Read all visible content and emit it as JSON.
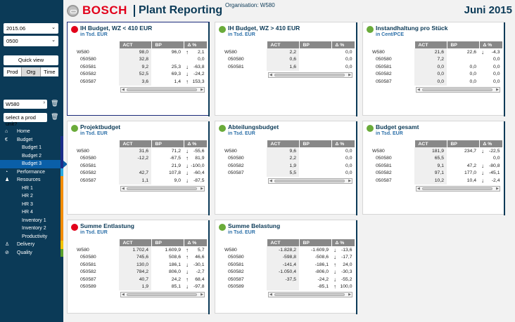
{
  "header": {
    "brand": "BOSCH",
    "title": "Plant Reporting",
    "organisation": "Organisation: W580",
    "period": "Juni 2015"
  },
  "sidebar": {
    "period_select": "2015.06",
    "plant_select": "0500",
    "quick_view": "Quick view",
    "tabs": [
      {
        "label": "Prod",
        "active": false
      },
      {
        "label": "Org",
        "active": true
      },
      {
        "label": "Time",
        "active": false
      }
    ],
    "unit_input": "W580",
    "prod_unit_placeholder": "select a prod unit?",
    "nav": [
      {
        "label": "Home",
        "icon": "home-icon",
        "glyph": "⌂",
        "sub": false,
        "strip": ""
      },
      {
        "label": "Budget",
        "icon": "euro-icon",
        "glyph": "€",
        "sub": false,
        "strip": "#1b2d8a"
      },
      {
        "label": "Budget 1",
        "sub": true,
        "strip": "#1b2d8a"
      },
      {
        "label": "Budget 2",
        "sub": true,
        "strip": "#1b2d8a"
      },
      {
        "label": "Budget 3",
        "sub": true,
        "strip": "#1b2d8a",
        "active": true
      },
      {
        "label": "Performance",
        "icon": "gauge-icon",
        "glyph": "◔",
        "sub": false,
        "strip": "#29a8e0"
      },
      {
        "label": "Resources",
        "icon": "people-icon",
        "glyph": "♟",
        "sub": false,
        "strip": "#f28c00"
      },
      {
        "label": "HR 1",
        "sub": true,
        "strip": "#f28c00"
      },
      {
        "label": "HR 2",
        "sub": true,
        "strip": "#f28c00"
      },
      {
        "label": "HR 3",
        "sub": true,
        "strip": "#f28c00"
      },
      {
        "label": "HR 4",
        "sub": true,
        "strip": "#f28c00"
      },
      {
        "label": "Inventory 1",
        "sub": true,
        "strip": "#f28c00"
      },
      {
        "label": "Inventory 2",
        "sub": true,
        "strip": "#f28c00"
      },
      {
        "label": "Productivity",
        "sub": true,
        "strip": "#f28c00"
      },
      {
        "label": "Delivery",
        "icon": "person-icon",
        "glyph": "♙",
        "sub": false,
        "strip": "#f2c200"
      },
      {
        "label": "Quality",
        "icon": "check-icon",
        "glyph": "⊘",
        "sub": false,
        "strip": "#5aa02c"
      }
    ]
  },
  "columns": [
    "ACT",
    "BP",
    "Δ %"
  ],
  "cards": [
    {
      "title": "IH Budget, WZ < 410 EUR",
      "unit": "in Tsd. EUR",
      "status": "red",
      "selected": true,
      "rows": [
        {
          "name": "W580",
          "act": "98,0",
          "bp": "96,0",
          "arrow": "up",
          "delta": "2,1"
        },
        {
          "name": "050580",
          "act": "32,8",
          "bp": "",
          "arrow": "",
          "delta": "0,0"
        },
        {
          "name": "050581",
          "act": "9,2",
          "bp": "25,3",
          "arrow": "down",
          "delta": "-63,8"
        },
        {
          "name": "050582",
          "act": "52,5",
          "bp": "69,3",
          "arrow": "down",
          "delta": "-24,2"
        },
        {
          "name": "050587",
          "act": "3,6",
          "bp": "1,4",
          "arrow": "up",
          "delta": "153,3"
        }
      ]
    },
    {
      "title": "IH Budget, WZ > 410 EUR",
      "unit": "in Tsd. EUR",
      "status": "green",
      "selected": false,
      "rows": [
        {
          "name": "W580",
          "act": "2,2",
          "bp": "",
          "arrow": "",
          "delta": "0,0"
        },
        {
          "name": "050580",
          "act": "0,6",
          "bp": "",
          "arrow": "",
          "delta": "0,0"
        },
        {
          "name": "050581",
          "act": "1,6",
          "bp": "",
          "arrow": "",
          "delta": "0,0"
        }
      ]
    },
    {
      "title": "Instandhaltung pro Stück",
      "unit": "in Cent/PCE",
      "status": "green",
      "selected": false,
      "rows": [
        {
          "name": "W580",
          "act": "21,6",
          "bp": "22,6",
          "arrow": "down",
          "delta": "-4,3"
        },
        {
          "name": "050580",
          "act": "7,2",
          "bp": "",
          "arrow": "",
          "delta": "0,0"
        },
        {
          "name": "050581",
          "act": "0,0",
          "bp": "0,0",
          "arrow": "",
          "delta": "0,0"
        },
        {
          "name": "050582",
          "act": "0,0",
          "bp": "0,0",
          "arrow": "",
          "delta": "0,0"
        },
        {
          "name": "050587",
          "act": "0,0",
          "bp": "0,0",
          "arrow": "",
          "delta": "0,0"
        }
      ]
    },
    {
      "title": "Projektbudget",
      "unit": "in Tsd. EUR",
      "status": "green",
      "selected": false,
      "rows": [
        {
          "name": "W580",
          "act": "31,6",
          "bp": "71,2",
          "arrow": "down",
          "delta": "-55,6"
        },
        {
          "name": "050580",
          "act": "-12,2",
          "bp": "-67,5",
          "arrow": "up",
          "delta": "81,9"
        },
        {
          "name": "050581",
          "act": "",
          "bp": "21,9",
          "arrow": "down",
          "delta": "-100,0"
        },
        {
          "name": "050582",
          "act": "42,7",
          "bp": "107,8",
          "arrow": "down",
          "delta": "-60,4"
        },
        {
          "name": "050587",
          "act": "1,1",
          "bp": "9,0",
          "arrow": "down",
          "delta": "-87,5"
        }
      ]
    },
    {
      "title": "Abteilungsbudget",
      "unit": "in Tsd. EUR",
      "status": "green",
      "selected": false,
      "rows": [
        {
          "name": "W580",
          "act": "9,6",
          "bp": "",
          "arrow": "",
          "delta": "0,0"
        },
        {
          "name": "050580",
          "act": "2,2",
          "bp": "",
          "arrow": "",
          "delta": "0,0"
        },
        {
          "name": "050582",
          "act": "1,9",
          "bp": "",
          "arrow": "",
          "delta": "0,0"
        },
        {
          "name": "050587",
          "act": "5,5",
          "bp": "",
          "arrow": "",
          "delta": "0,0"
        }
      ]
    },
    {
      "title": "Budget gesamt",
      "unit": "in Tsd. EUR",
      "status": "green",
      "selected": false,
      "rows": [
        {
          "name": "W580",
          "act": "181,9",
          "bp": "234,7",
          "arrow": "down",
          "delta": "-22,5"
        },
        {
          "name": "050580",
          "act": "65,5",
          "bp": "",
          "arrow": "",
          "delta": "0,0"
        },
        {
          "name": "050581",
          "act": "9,1",
          "bp": "47,2",
          "arrow": "down",
          "delta": "-80,8"
        },
        {
          "name": "050582",
          "act": "97,1",
          "bp": "177,0",
          "arrow": "down",
          "delta": "-45,1"
        },
        {
          "name": "050587",
          "act": "10,2",
          "bp": "10,4",
          "arrow": "down",
          "delta": "-2,4"
        }
      ]
    },
    {
      "title": "Summe Entlastung",
      "unit": "in Tsd. EUR",
      "status": "red",
      "selected": false,
      "rows": [
        {
          "name": "W580",
          "act": "1.702,4",
          "bp": "1.609,9",
          "arrow": "up",
          "delta": "5,7"
        },
        {
          "name": "050580",
          "act": "745,6",
          "bp": "508,6",
          "arrow": "up",
          "delta": "46,6"
        },
        {
          "name": "050581",
          "act": "130,0",
          "bp": "186,1",
          "arrow": "down",
          "delta": "-30,1"
        },
        {
          "name": "050582",
          "act": "784,2",
          "bp": "806,0",
          "arrow": "down",
          "delta": "-2,7"
        },
        {
          "name": "050587",
          "act": "40,7",
          "bp": "24,2",
          "arrow": "up",
          "delta": "68,4"
        },
        {
          "name": "050589",
          "act": "1,9",
          "bp": "85,1",
          "arrow": "down",
          "delta": "-97,8"
        }
      ]
    },
    {
      "title": "Summe Belastung",
      "unit": "in Tsd. EUR",
      "status": "green",
      "selected": false,
      "rows": [
        {
          "name": "W580",
          "act": "-1.828,2",
          "bp": "-1.609,9",
          "arrow": "down",
          "delta": "-13,6"
        },
        {
          "name": "050580",
          "act": "-598,8",
          "bp": "-508,6",
          "arrow": "down",
          "delta": "-17,7"
        },
        {
          "name": "050581",
          "act": "-141,4",
          "bp": "-186,1",
          "arrow": "up",
          "delta": "24,0"
        },
        {
          "name": "050582",
          "act": "-1.050,4",
          "bp": "-806,0",
          "arrow": "down",
          "delta": "-30,3"
        },
        {
          "name": "050587",
          "act": "-37,5",
          "bp": "-24,2",
          "arrow": "down",
          "delta": "-55,2"
        },
        {
          "name": "050589",
          "act": "",
          "bp": "-85,1",
          "arrow": "up",
          "delta": "100,0"
        }
      ]
    }
  ],
  "colors": {
    "red_status": "#e2001a",
    "green_status": "#6aab3a",
    "navy": "#0b3a57"
  }
}
